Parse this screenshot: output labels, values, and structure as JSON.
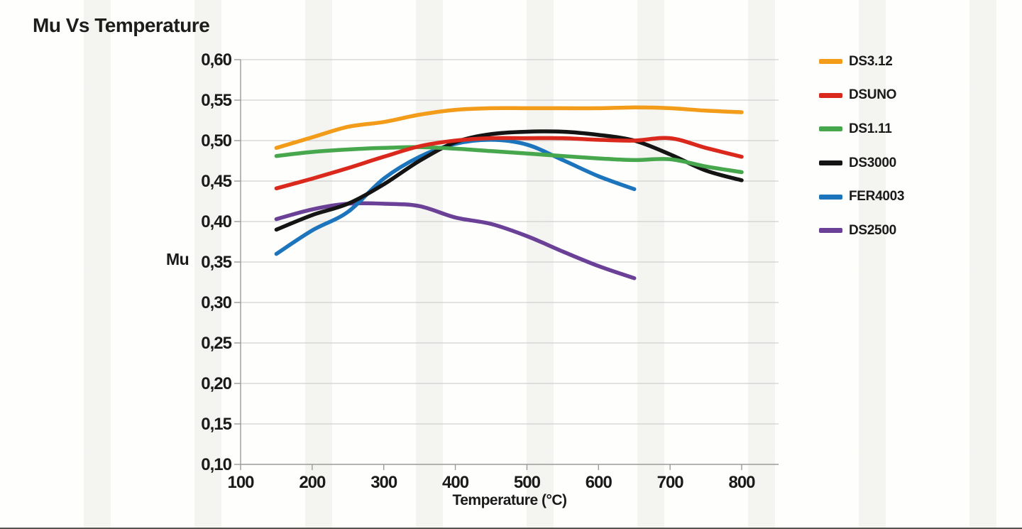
{
  "chart_data": {
    "type": "line",
    "title": "Mu Vs Temperature",
    "xlabel": "Temperature (°C)",
    "ylabel": "Mu",
    "x": [
      150,
      200,
      250,
      300,
      350,
      400,
      450,
      500,
      550,
      600,
      650,
      700,
      750,
      800
    ],
    "series": [
      {
        "name": "DS3.12",
        "color": "#F29C1A",
        "values": [
          0.491,
          0.504,
          0.517,
          0.523,
          0.532,
          0.538,
          0.54,
          0.54,
          0.54,
          0.54,
          0.541,
          0.54,
          0.537,
          0.535
        ]
      },
      {
        "name": "DSUNO",
        "color": "#DA291C",
        "values": [
          0.441,
          0.453,
          0.466,
          0.48,
          0.493,
          0.5,
          0.503,
          0.503,
          0.503,
          0.501,
          0.5,
          0.503,
          0.491,
          0.48
        ]
      },
      {
        "name": "DS1.11",
        "color": "#46A74D",
        "values": [
          0.481,
          0.486,
          0.489,
          0.491,
          0.492,
          0.49,
          0.487,
          0.484,
          0.481,
          0.478,
          0.476,
          0.477,
          0.468,
          0.461
        ]
      },
      {
        "name": "DS3000",
        "color": "#141414",
        "values": [
          0.39,
          0.408,
          0.422,
          0.446,
          0.475,
          0.498,
          0.508,
          0.511,
          0.511,
          0.507,
          0.5,
          0.483,
          0.463,
          0.451
        ]
      },
      {
        "name": "FER4003",
        "color": "#1C75BC",
        "values": [
          0.36,
          0.389,
          0.412,
          0.453,
          0.48,
          0.496,
          0.501,
          0.495,
          0.476,
          0.456,
          0.44
        ]
      },
      {
        "name": "DS2500",
        "color": "#6B4097",
        "values": [
          0.403,
          0.415,
          0.422,
          0.422,
          0.419,
          0.405,
          0.397,
          0.382,
          0.363,
          0.345,
          0.33
        ]
      }
    ],
    "x_ticks": {
      "values": [
        100,
        200,
        300,
        400,
        500,
        600,
        700,
        800
      ],
      "labels": [
        "100",
        "200",
        "300",
        "400",
        "500",
        "600",
        "700",
        "800"
      ]
    },
    "y_ticks": {
      "values": [
        0.6,
        0.55,
        0.5,
        0.45,
        0.4,
        0.35,
        0.3,
        0.25,
        0.2,
        0.15,
        0.1
      ],
      "labels": [
        "0,60",
        "0,55",
        "0,50",
        "0,45",
        "0,40",
        "0,35",
        "0,30",
        "0,25",
        "0,20",
        "0,15",
        "0,10"
      ]
    },
    "xlim": [
      100,
      851
    ],
    "ylim": [
      0.1,
      0.6
    ],
    "grid": "horizontal-only",
    "legend_position": "right",
    "draw_order_bottom_to_top": [
      "DS2500",
      "FER4003",
      "DS3000",
      "DS1.11",
      "DSUNO",
      "DS3.12"
    ],
    "colors": {
      "grid": "#c6c6c6",
      "axis": "#9b9b9b",
      "text": "#1a1a1a",
      "background": "#fafaf9"
    }
  }
}
